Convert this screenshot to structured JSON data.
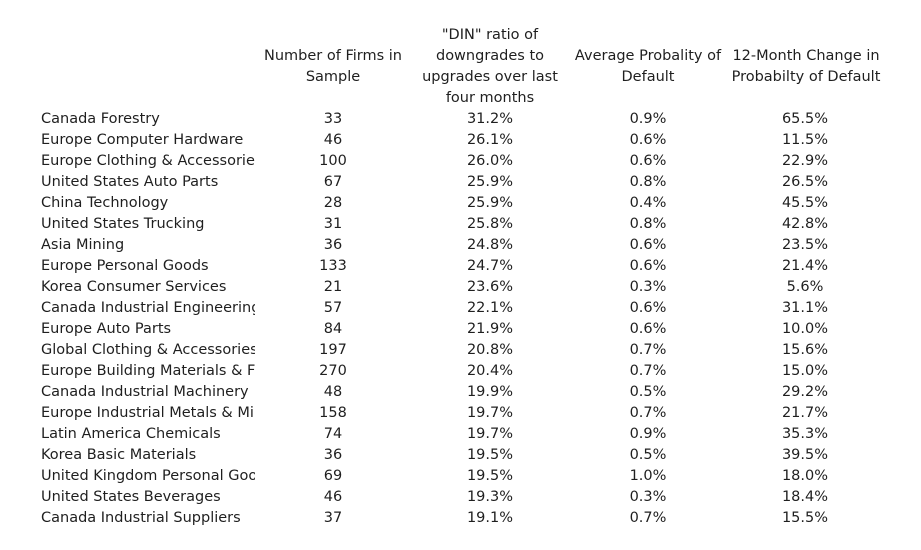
{
  "headers": {
    "firms": [
      "Number of Firms in",
      "Sample"
    ],
    "din": [
      "\"DIN\" ratio of",
      "downgrades to",
      "upgrades over last",
      "four months"
    ],
    "pd": [
      "Average Probality of",
      "Default"
    ],
    "chg": [
      "12-Month Change in",
      "Probabilty of Default"
    ]
  },
  "rows": [
    {
      "name": "Canada Forestry",
      "firms": "33",
      "din": "31.2%",
      "pd": "0.9%",
      "chg": "65.5%"
    },
    {
      "name": "Europe Computer Hardware",
      "firms": "46",
      "din": "26.1%",
      "pd": "0.6%",
      "chg": "11.5%"
    },
    {
      "name": "Europe Clothing & Accessorie",
      "firms": "100",
      "din": "26.0%",
      "pd": "0.6%",
      "chg": "22.9%"
    },
    {
      "name": "United States Auto Parts",
      "firms": "67",
      "din": "25.9%",
      "pd": "0.8%",
      "chg": "26.5%"
    },
    {
      "name": "China Technology",
      "firms": "28",
      "din": "25.9%",
      "pd": "0.4%",
      "chg": "45.5%"
    },
    {
      "name": "United States Trucking",
      "firms": "31",
      "din": "25.8%",
      "pd": "0.8%",
      "chg": "42.8%"
    },
    {
      "name": "Asia Mining",
      "firms": "36",
      "din": "24.8%",
      "pd": "0.6%",
      "chg": "23.5%"
    },
    {
      "name": "Europe Personal Goods",
      "firms": "133",
      "din": "24.7%",
      "pd": "0.6%",
      "chg": "21.4%"
    },
    {
      "name": "Korea Consumer Services",
      "firms": "21",
      "din": "23.6%",
      "pd": "0.3%",
      "chg": "5.6%"
    },
    {
      "name": "Canada Industrial Engineering",
      "firms": "57",
      "din": "22.1%",
      "pd": "0.6%",
      "chg": "31.1%"
    },
    {
      "name": "Europe Auto Parts",
      "firms": "84",
      "din": "21.9%",
      "pd": "0.6%",
      "chg": "10.0%"
    },
    {
      "name": "Global Clothing & Accessories",
      "firms": "197",
      "din": "20.8%",
      "pd": "0.7%",
      "chg": "15.6%"
    },
    {
      "name": "Europe Building Materials & Fi",
      "firms": "270",
      "din": "20.4%",
      "pd": "0.7%",
      "chg": "15.0%"
    },
    {
      "name": "Canada Industrial Machinery",
      "firms": "48",
      "din": "19.9%",
      "pd": "0.5%",
      "chg": "29.2%"
    },
    {
      "name": "Europe Industrial Metals & Mir",
      "firms": "158",
      "din": "19.7%",
      "pd": "0.7%",
      "chg": "21.7%"
    },
    {
      "name": "Latin America Chemicals",
      "firms": "74",
      "din": "19.7%",
      "pd": "0.9%",
      "chg": "35.3%"
    },
    {
      "name": "Korea Basic Materials",
      "firms": "36",
      "din": "19.5%",
      "pd": "0.5%",
      "chg": "39.5%"
    },
    {
      "name": "United Kingdom Personal Goo",
      "firms": "69",
      "din": "19.5%",
      "pd": "1.0%",
      "chg": "18.0%"
    },
    {
      "name": "United States Beverages",
      "firms": "46",
      "din": "19.3%",
      "pd": "0.3%",
      "chg": "18.4%"
    },
    {
      "name": "Canada Industrial Suppliers",
      "firms": "37",
      "din": "19.1%",
      "pd": "0.7%",
      "chg": "15.5%"
    }
  ]
}
